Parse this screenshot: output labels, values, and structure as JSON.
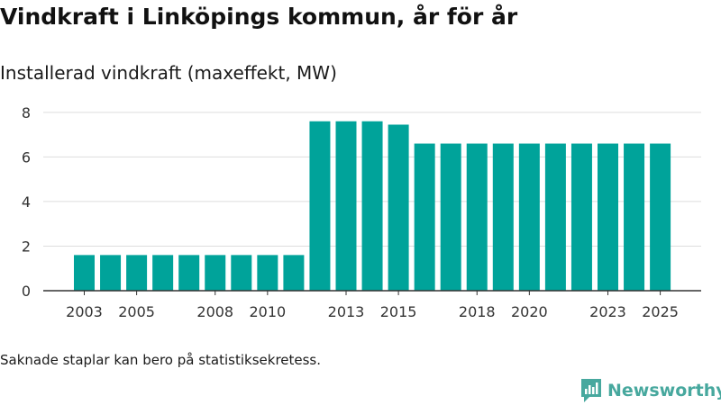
{
  "title": "Vindkraft i Linköpings kommun, år för år",
  "subtitle": "Installerad vindkraft (maxeffekt, MW)",
  "footnote": "Saknade staplar kan bero på statistiksekretess.",
  "brand": {
    "name": "Newsworthy",
    "icon": "newsworthy-logo-icon"
  },
  "colors": {
    "bar": "#00a39a",
    "grid": "#dddddd",
    "axis": "#333333",
    "tick_text": "#333333",
    "brand": "#47a89e"
  },
  "chart_data": {
    "type": "bar",
    "title": "Vindkraft i Linköpings kommun, år för år",
    "ylabel": "Installerad vindkraft (maxeffekt, MW)",
    "xlabel": "",
    "categories": [
      2003,
      2004,
      2005,
      2006,
      2007,
      2008,
      2009,
      2010,
      2011,
      2012,
      2013,
      2014,
      2015,
      2016,
      2017,
      2018,
      2019,
      2020,
      2021,
      2022,
      2023,
      2024,
      2025
    ],
    "values": [
      1.6,
      1.6,
      1.6,
      1.6,
      1.6,
      1.6,
      1.6,
      1.6,
      1.6,
      7.6,
      7.6,
      7.6,
      7.45,
      6.6,
      6.6,
      6.6,
      6.6,
      6.6,
      6.6,
      6.6,
      6.6,
      6.6,
      6.6
    ],
    "x_tick_labels": [
      2003,
      2005,
      2008,
      2010,
      2013,
      2015,
      2018,
      2020,
      2023,
      2025
    ],
    "y_ticks": [
      0,
      2,
      4,
      6,
      8
    ],
    "ylim": [
      0,
      8.6
    ],
    "grid": true,
    "legend": "none"
  }
}
